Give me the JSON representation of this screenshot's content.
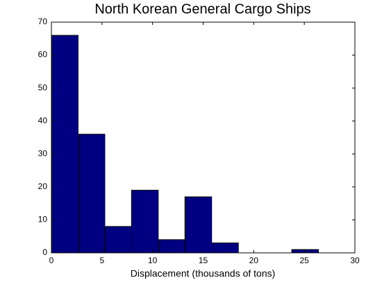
{
  "chart_data": {
    "type": "histogram",
    "title": "North Korean General Cargo Ships",
    "x_label": "Displacement (thousands of tons)",
    "bins": [
      0,
      2.64,
      5.28,
      7.92,
      10.56,
      13.2,
      15.84,
      18.48,
      21.12,
      23.76,
      26.4
    ],
    "values": [
      66,
      36,
      8,
      19,
      4,
      17,
      3,
      0,
      0,
      1
    ],
    "color": "#000080",
    "xlim": [
      0,
      30
    ],
    "xticks": [
      0,
      5,
      10,
      15,
      20,
      25,
      30
    ],
    "ylim": [
      0,
      70
    ],
    "yticks": [
      0,
      10,
      20,
      30,
      40,
      50,
      60,
      70
    ]
  }
}
